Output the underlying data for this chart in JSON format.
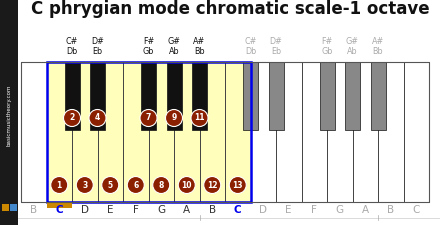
{
  "title": "C phrygian mode chromatic scale-1 octave",
  "title_fontsize": 12,
  "background_color": "#ffffff",
  "sidebar_color": "#1a1a1a",
  "sidebar_text": "basicmusictheory.com",
  "highlight_color": "#ffffbb",
  "scale_circle_color": "#8b2000",
  "blue_highlight": "#0000ee",
  "orange_highlight": "#cc8800",
  "gray_key_color": "#888888",
  "gray_text_color": "#aaaaaa",
  "white_key_notes": [
    "B",
    "C",
    "D",
    "E",
    "F",
    "G",
    "A",
    "B",
    "C",
    "D",
    "E",
    "F",
    "G",
    "A",
    "B",
    "C"
  ],
  "white_key_highlighted": [
    false,
    true,
    true,
    true,
    true,
    true,
    true,
    true,
    true,
    false,
    false,
    false,
    false,
    false,
    false,
    false
  ],
  "white_key_scale_num": [
    null,
    1,
    3,
    5,
    6,
    8,
    10,
    12,
    13,
    null,
    null,
    null,
    null,
    null,
    null,
    null
  ],
  "white_key_is_c1": [
    false,
    true,
    false,
    false,
    false,
    false,
    false,
    false,
    false,
    false,
    false,
    false,
    false,
    false,
    false,
    false
  ],
  "white_key_is_c2": [
    false,
    false,
    false,
    false,
    false,
    false,
    false,
    false,
    true,
    false,
    false,
    false,
    false,
    false,
    false,
    false
  ],
  "black_keys": [
    {
      "between": [
        1,
        2
      ],
      "highlighted": true,
      "scale_num": 2,
      "label1": "C#",
      "label2": "Db"
    },
    {
      "between": [
        2,
        3
      ],
      "highlighted": true,
      "scale_num": 4,
      "label1": "D#",
      "label2": "Eb"
    },
    {
      "between": [
        4,
        5
      ],
      "highlighted": true,
      "scale_num": 7,
      "label1": "F#",
      "label2": "Gb"
    },
    {
      "between": [
        5,
        6
      ],
      "highlighted": true,
      "scale_num": 9,
      "label1": "G#",
      "label2": "Ab"
    },
    {
      "between": [
        6,
        7
      ],
      "highlighted": true,
      "scale_num": 11,
      "label1": "A#",
      "label2": "Bb"
    },
    {
      "between": [
        8,
        9
      ],
      "highlighted": false,
      "scale_num": null,
      "label1": "C#",
      "label2": "Db"
    },
    {
      "between": [
        9,
        10
      ],
      "highlighted": false,
      "scale_num": null,
      "label1": "D#",
      "label2": "Eb"
    },
    {
      "between": [
        11,
        12
      ],
      "highlighted": false,
      "scale_num": null,
      "label1": "F#",
      "label2": "Gb"
    },
    {
      "between": [
        12,
        13
      ],
      "highlighted": false,
      "scale_num": null,
      "label1": "G#",
      "label2": "Ab"
    },
    {
      "between": [
        13,
        14
      ],
      "highlighted": false,
      "scale_num": null,
      "label1": "A#",
      "label2": "Bb"
    }
  ]
}
